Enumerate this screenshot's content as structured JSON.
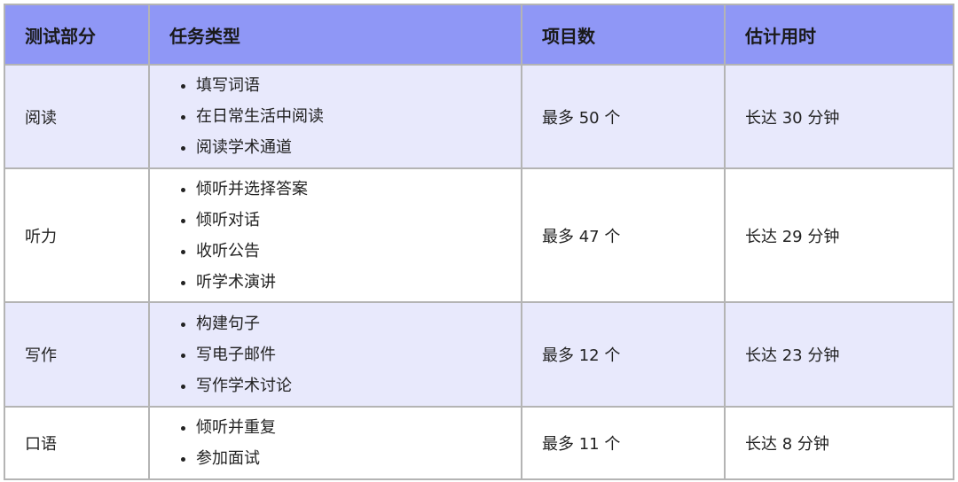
{
  "headers": [
    "测试部分",
    "任务类型",
    "项目数",
    "估计用时"
  ],
  "rows": [
    {
      "section": "阅读",
      "tasks": [
        "填写词语",
        "在日常生活中阅读",
        "阅读学术通道"
      ],
      "items": "最多 50 个",
      "time": "长达 30 分钟"
    },
    {
      "section": "听力",
      "tasks": [
        "倾听并选择答案",
        "倾听对话",
        "收听公告",
        "听学术演讲"
      ],
      "items": "最多 47 个",
      "time": "长达 29 分钟"
    },
    {
      "section": "写作",
      "tasks": [
        "构建句子",
        "写电子邮件",
        "写作学术讨论"
      ],
      "items": "最多 12 个",
      "time": "长达 23 分钟"
    },
    {
      "section": "口语",
      "tasks": [
        "倾听并重复",
        "参加面试"
      ],
      "items": "最多 11 个",
      "time": "长达 8 分钟"
    }
  ],
  "colors": {
    "header": "#8f97f6",
    "alt_row": "#e8e9fc",
    "border": "#b4b4b4"
  }
}
